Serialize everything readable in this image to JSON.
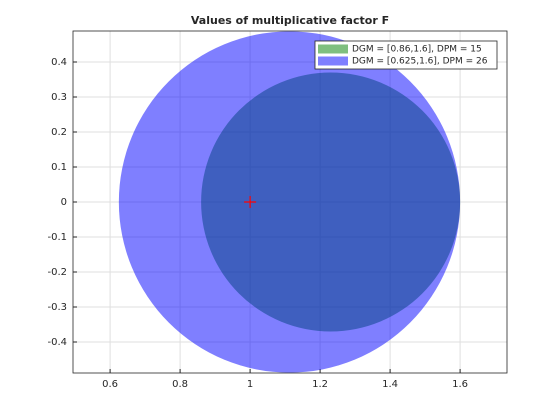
{
  "chart_data": {
    "type": "circle-patch",
    "title": "Values of multiplicative factor F",
    "xlim": [
      0.494,
      1.734
    ],
    "ylim": [
      -0.4886,
      0.4886
    ],
    "xticks": [
      0.6,
      0.8,
      1,
      1.2,
      1.4,
      1.6
    ],
    "yticks": [
      -0.4,
      -0.3,
      -0.2,
      -0.1,
      0,
      0.1,
      0.2,
      0.3,
      0.4
    ],
    "grid": true,
    "legend_position": "top-right",
    "series": [
      {
        "name": "DGM = [0.86,1.6], DPM = 15",
        "color": "#008000",
        "opacity": 0.5,
        "x_range": [
          0.86,
          1.6
        ],
        "y": 0
      },
      {
        "name": "DGM = [0.625,1.6], DPM = 26",
        "color": "#0000ff",
        "opacity": 0.5,
        "x_range": [
          0.625,
          1.6
        ],
        "y": 0
      }
    ],
    "marker": {
      "x": 1,
      "y": 0,
      "color": "#ff0000"
    }
  }
}
